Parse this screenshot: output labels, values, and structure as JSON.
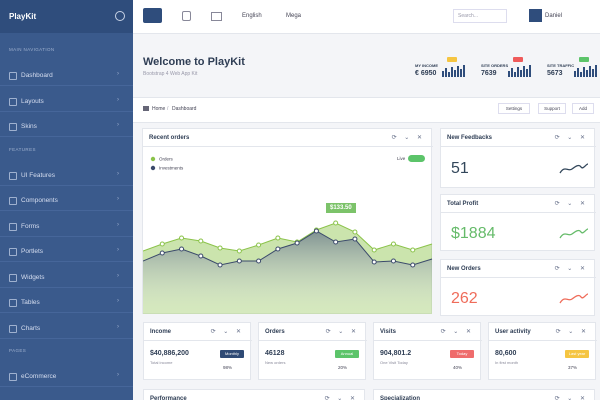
{
  "sidebar": {
    "brand": "PlayKit",
    "sections": [
      {
        "title": "MAIN NAVIGATION",
        "items": [
          "Dashboard",
          "Layouts",
          "Skins"
        ]
      },
      {
        "title": "FEATURES",
        "items": [
          "UI Features",
          "Components",
          "Forms",
          "Portlets",
          "Widgets",
          "Tables",
          "Charts"
        ]
      },
      {
        "title": "PAGES",
        "items": [
          "eCommerce"
        ]
      }
    ]
  },
  "topbar": {
    "language": "English",
    "menu": "Mega",
    "search_placeholder": "Search...",
    "user": "Daniel"
  },
  "header": {
    "title": "Welcome to PlayKit",
    "subtitle": "Bootstrap 4 Web App Kit",
    "stats": [
      {
        "label": "MY INCOME",
        "value": "€ 6950",
        "badge_color": "#f5c542"
      },
      {
        "label": "SITE ORDERS",
        "value": "7639",
        "badge_color": "#ef5b5b"
      },
      {
        "label": "SITE TRAFFIC",
        "value": "5673",
        "badge_color": "#5cc46a"
      }
    ]
  },
  "breadcrumb": {
    "items": [
      "Home",
      "Dashboard"
    ],
    "buttons": [
      "Settings",
      "Support",
      "Add"
    ]
  },
  "recent_orders": {
    "title": "Recent orders",
    "live": "Live",
    "tooltip": "$133.50",
    "chart": {
      "type": "area",
      "ylim": [
        0,
        100
      ],
      "series": [
        {
          "name": "Orders",
          "color": "#8bc34a",
          "values": [
            63,
            70,
            76,
            73,
            66,
            63,
            69,
            76,
            72,
            84,
            91,
            82,
            64,
            70,
            64,
            70
          ]
        },
        {
          "name": "Investments",
          "color": "#3b4a6b",
          "values": [
            53,
            61,
            65,
            58,
            49,
            53,
            53,
            65,
            71,
            83,
            72,
            75,
            52,
            53,
            49,
            55
          ]
        }
      ]
    }
  },
  "side_cards": [
    {
      "title": "New Feedbacks",
      "value": "51",
      "color": "#33475b"
    },
    {
      "title": "Total Profit",
      "value": "$1884",
      "color": "#66bb6a"
    },
    {
      "title": "New Orders",
      "value": "262",
      "color": "#ef6c5a"
    }
  ],
  "stat_cards": [
    {
      "title": "Income",
      "value": "$40,886,200",
      "caption": "Total income",
      "badge": "Monthly",
      "badge_color": "#2f4a75",
      "percent": "98%"
    },
    {
      "title": "Orders",
      "value": "46128",
      "caption": "New orders",
      "badge": "Annual",
      "badge_color": "#5cc46a",
      "percent": "20%"
    },
    {
      "title": "Visits",
      "value": "904,801.2",
      "caption": "One Visit Today",
      "badge": "Today",
      "badge_color": "#ef6c6c",
      "percent": "40%"
    },
    {
      "title": "User activity",
      "value": "80,600",
      "caption": "In first month",
      "badge": "Last year",
      "badge_color": "#f5c542",
      "percent": "37%"
    }
  ],
  "bottom_cards": [
    "Performance",
    "Specialization"
  ]
}
